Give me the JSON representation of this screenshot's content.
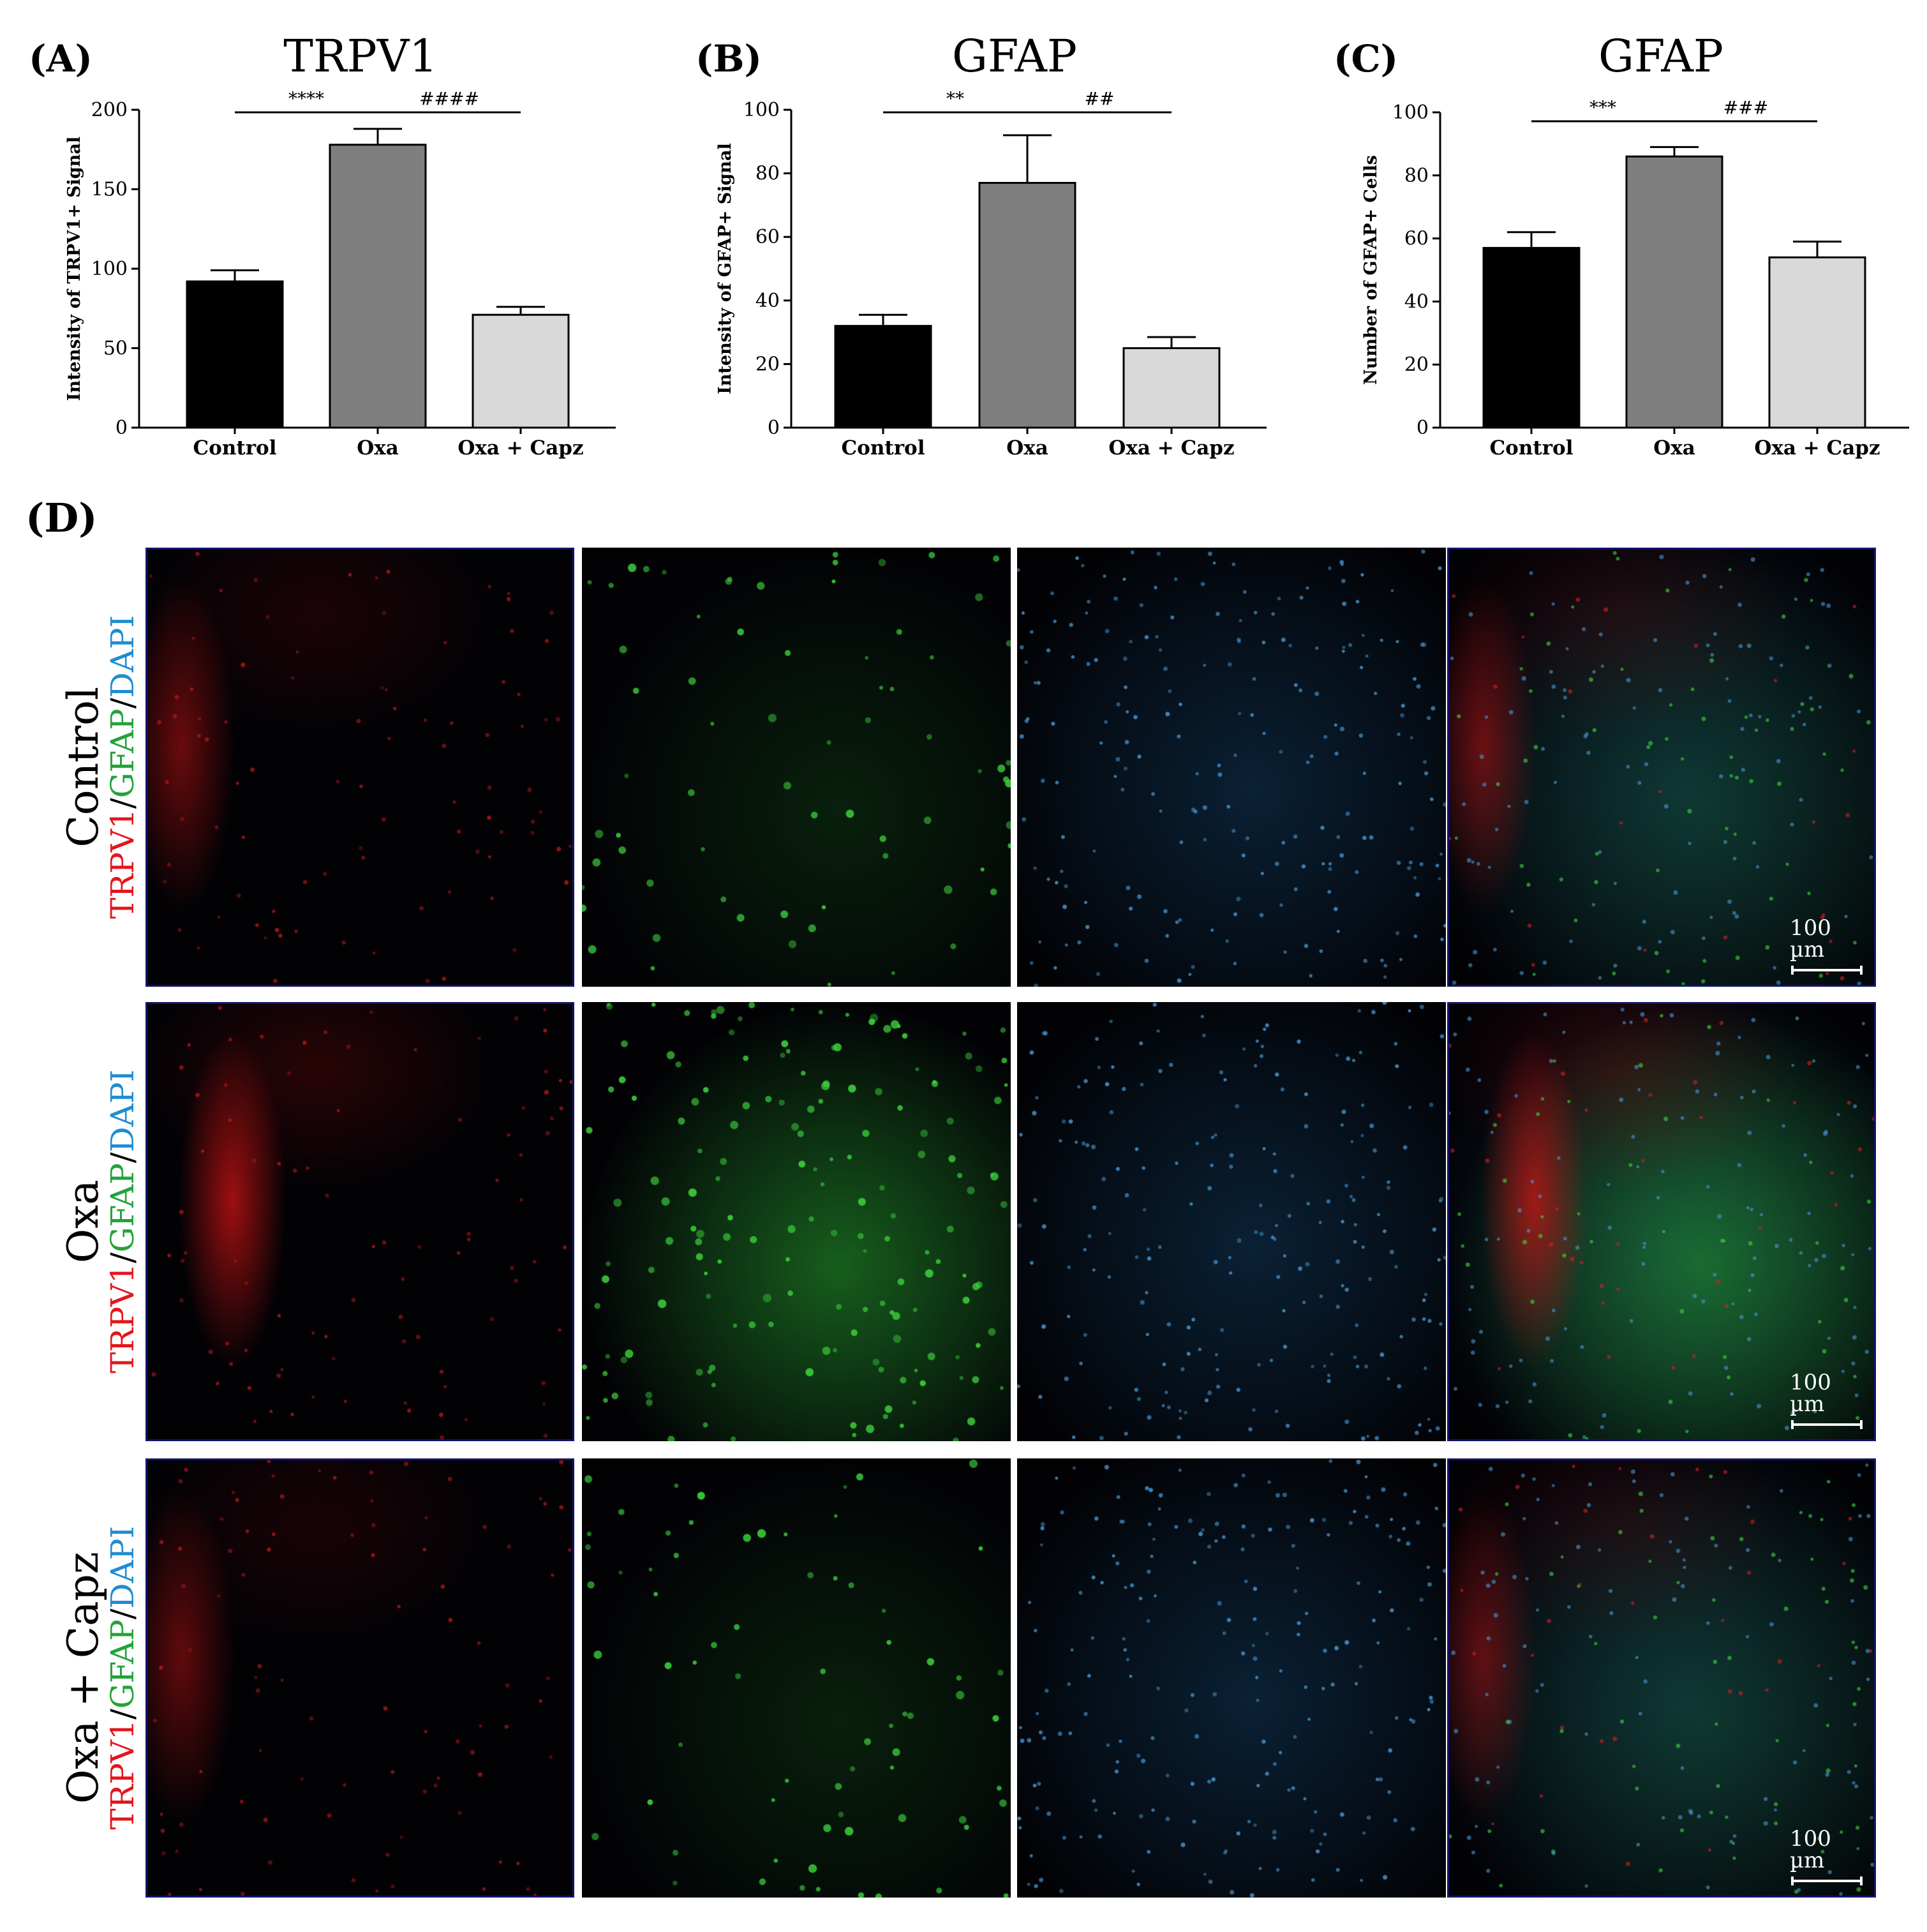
{
  "chart_data": [
    {
      "type": "bar",
      "panel": "(A)",
      "title": "TRPV1",
      "ylabel": "Intensity of TRPV1+ Signal",
      "categories": [
        "Control",
        "Oxa",
        "Oxa + Capz"
      ],
      "values": [
        92,
        178,
        71
      ],
      "errors": [
        7,
        10,
        5
      ],
      "colors": [
        "#000000",
        "#7f7f7f",
        "#d9d9d9"
      ],
      "ylim": [
        0,
        200
      ],
      "yticks": [
        "0",
        "50",
        "100",
        "150",
        "200"
      ],
      "significance": [
        "****",
        "####"
      ]
    },
    {
      "type": "bar",
      "panel": "(B)",
      "title": "GFAP",
      "ylabel": "Intensity of GFAP+ Signal",
      "categories": [
        "Control",
        "Oxa",
        "Oxa + Capz"
      ],
      "values": [
        32,
        77,
        25
      ],
      "errors": [
        3.5,
        15,
        3.5
      ],
      "colors": [
        "#000000",
        "#7f7f7f",
        "#d9d9d9"
      ],
      "ylim": [
        0,
        100
      ],
      "yticks": [
        "0",
        "20",
        "40",
        "60",
        "80",
        "100"
      ],
      "significance": [
        "**",
        "##"
      ]
    },
    {
      "type": "bar",
      "panel": "(C)",
      "title": "GFAP",
      "ylabel": "Number of GFAP+ Cells",
      "categories": [
        "Control",
        "Oxa",
        "Oxa + Capz"
      ],
      "values": [
        57,
        86,
        54
      ],
      "errors": [
        5,
        3,
        5
      ],
      "colors": [
        "#000000",
        "#7f7f7f",
        "#d9d9d9"
      ],
      "ylim": [
        0,
        100
      ],
      "yticks": [
        "0",
        "20",
        "40",
        "60",
        "80",
        "100"
      ],
      "significance": [
        "***",
        "###"
      ]
    }
  ],
  "micrographs": {
    "panel_label": "(D)",
    "stain_parts": [
      "TRPV1",
      "/",
      "GFAP",
      "/",
      "DAPI"
    ],
    "scale_bar": "100 µm",
    "rows": [
      {
        "label": "Control"
      },
      {
        "label": "Oxa"
      },
      {
        "label": "Oxa + Capz"
      }
    ]
  }
}
